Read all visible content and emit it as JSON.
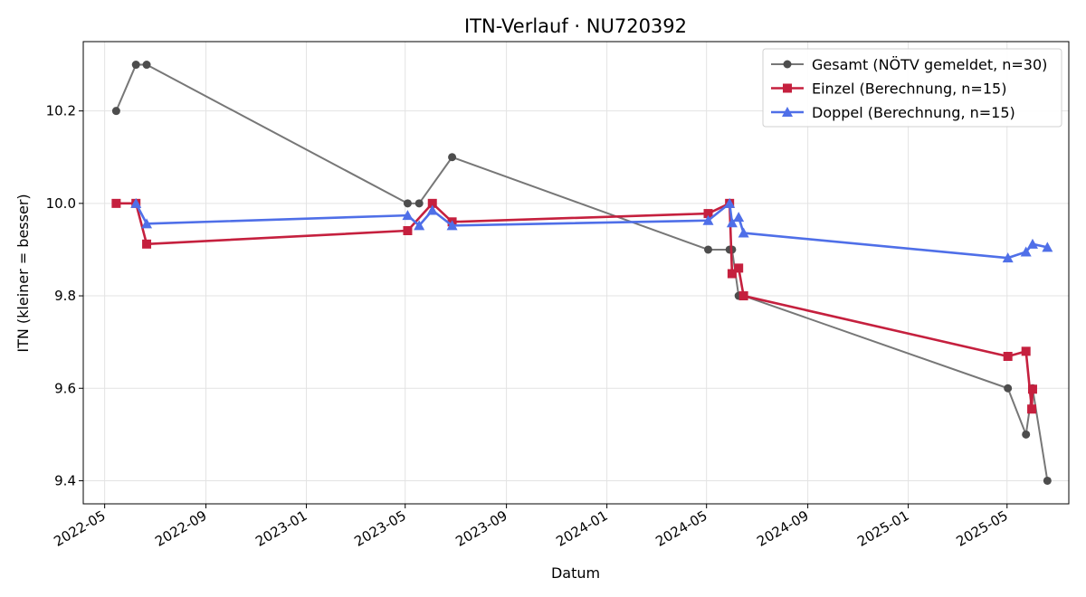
{
  "chart_data": {
    "type": "line",
    "title": "ITN-Verlauf · NU720392",
    "xlabel": "Datum",
    "ylabel": "ITN  (kleiner = besser)",
    "x_type": "date",
    "xlim": [
      "2022-04-05",
      "2025-07-15"
    ],
    "ylim": [
      9.35,
      10.35
    ],
    "x_ticks": [
      "2022-05",
      "2022-09",
      "2023-01",
      "2023-05",
      "2023-09",
      "2024-01",
      "2024-05",
      "2024-09",
      "2025-01",
      "2025-05"
    ],
    "y_ticks": [
      9.4,
      9.6,
      9.8,
      10.0,
      10.2
    ],
    "y_tick_labels": [
      "9.4",
      "9.6",
      "9.8",
      "10.0",
      "10.2"
    ],
    "grid": true,
    "legend_position": "top-right",
    "series": [
      {
        "name": "Gesamt (NÖTV gemeldet, n=30)",
        "color": "#777777",
        "marker_color": "#4d4d4d",
        "marker": "circle",
        "points": [
          {
            "x": "2022-05-15",
            "y": 10.2
          },
          {
            "x": "2022-06-08",
            "y": 10.3
          },
          {
            "x": "2022-06-21",
            "y": 10.3
          },
          {
            "x": "2023-05-04",
            "y": 10.0
          },
          {
            "x": "2023-05-18",
            "y": 10.0
          },
          {
            "x": "2023-06-27",
            "y": 10.1
          },
          {
            "x": "2024-05-03",
            "y": 9.9
          },
          {
            "x": "2024-05-29",
            "y": 9.9
          },
          {
            "x": "2024-06-01",
            "y": 9.9
          },
          {
            "x": "2024-06-09",
            "y": 9.8
          },
          {
            "x": "2024-06-15",
            "y": 9.8
          },
          {
            "x": "2025-05-02",
            "y": 9.6
          },
          {
            "x": "2025-05-24",
            "y": 9.5
          },
          {
            "x": "2025-06-01",
            "y": 9.6
          },
          {
            "x": "2025-06-19",
            "y": 9.4
          }
        ]
      },
      {
        "name": "Einzel (Berechnung, n=15)",
        "color": "#c5203e",
        "marker": "square",
        "points": [
          {
            "x": "2022-05-15",
            "y": 10.0
          },
          {
            "x": "2022-06-08",
            "y": 10.0
          },
          {
            "x": "2022-06-21",
            "y": 9.912
          },
          {
            "x": "2023-05-04",
            "y": 9.941
          },
          {
            "x": "2023-06-03",
            "y": 10.0
          },
          {
            "x": "2023-06-27",
            "y": 9.96
          },
          {
            "x": "2024-05-03",
            "y": 9.978
          },
          {
            "x": "2024-05-29",
            "y": 10.0
          },
          {
            "x": "2024-06-01",
            "y": 9.848
          },
          {
            "x": "2024-06-09",
            "y": 9.86
          },
          {
            "x": "2024-06-15",
            "y": 9.8
          },
          {
            "x": "2025-05-02",
            "y": 9.669
          },
          {
            "x": "2025-05-24",
            "y": 9.68
          },
          {
            "x": "2025-05-31",
            "y": 9.555
          },
          {
            "x": "2025-06-01",
            "y": 9.598
          }
        ]
      },
      {
        "name": "Doppel (Berechnung, n=15)",
        "color": "#4f6fe8",
        "marker": "triangle",
        "points": [
          {
            "x": "2022-06-08",
            "y": 10.0
          },
          {
            "x": "2022-06-21",
            "y": 9.956
          },
          {
            "x": "2023-05-04",
            "y": 9.974
          },
          {
            "x": "2023-05-18",
            "y": 9.952
          },
          {
            "x": "2023-06-03",
            "y": 9.985
          },
          {
            "x": "2023-06-27",
            "y": 9.952
          },
          {
            "x": "2024-05-03",
            "y": 9.963
          },
          {
            "x": "2024-05-29",
            "y": 10.0
          },
          {
            "x": "2024-06-01",
            "y": 9.958
          },
          {
            "x": "2024-06-09",
            "y": 9.97
          },
          {
            "x": "2024-06-15",
            "y": 9.936
          },
          {
            "x": "2025-05-02",
            "y": 9.882
          },
          {
            "x": "2025-05-24",
            "y": 9.895
          },
          {
            "x": "2025-06-01",
            "y": 9.912
          },
          {
            "x": "2025-06-19",
            "y": 9.905
          }
        ]
      }
    ]
  }
}
